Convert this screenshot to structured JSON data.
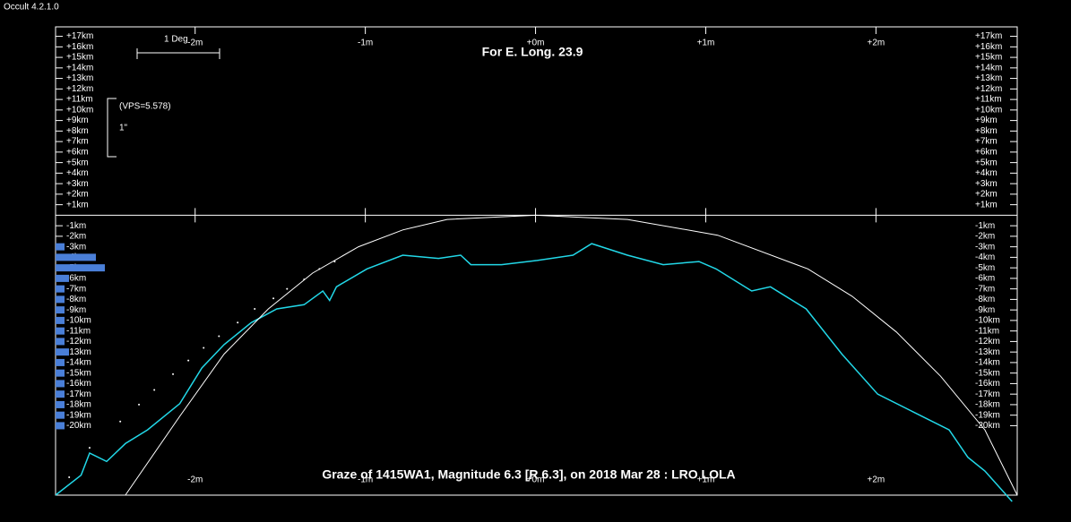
{
  "window": {
    "title": "Occult 4.2.1.0"
  },
  "chart_data": {
    "type": "line",
    "title": "For E. Long. 23.9",
    "caption": "Graze of  1415WA1,  Magnitude 6.3 [R 6.3],  on 2018 Mar 28  : LRO LOLA",
    "scale_label": "1 Deg",
    "vps_label": "(VPS=5.578)",
    "arcsec_label": "1\"",
    "xlim": [
      -2.82,
      2.83
    ],
    "ylim": [
      -26.6,
      17.9
    ],
    "xticks": [
      {
        "value": -2,
        "label": "-2m"
      },
      {
        "value": -1,
        "label": "-1m"
      },
      {
        "value": 0,
        "label": "+0m"
      },
      {
        "value": 1,
        "label": "+1m"
      },
      {
        "value": 2,
        "label": "+2m"
      }
    ],
    "yticks": [
      {
        "value": 17,
        "label": "+17km"
      },
      {
        "value": 16,
        "label": "+16km"
      },
      {
        "value": 15,
        "label": "+15km"
      },
      {
        "value": 14,
        "label": "+14km"
      },
      {
        "value": 13,
        "label": "+13km"
      },
      {
        "value": 12,
        "label": "+12km"
      },
      {
        "value": 11,
        "label": "+11km"
      },
      {
        "value": 10,
        "label": "+10km"
      },
      {
        "value": 9,
        "label": "+9km"
      },
      {
        "value": 8,
        "label": "+8km"
      },
      {
        "value": 7,
        "label": "+7km"
      },
      {
        "value": 6,
        "label": "+6km"
      },
      {
        "value": 5,
        "label": "+5km"
      },
      {
        "value": 4,
        "label": "+4km"
      },
      {
        "value": 3,
        "label": "+3km"
      },
      {
        "value": 2,
        "label": "+2km"
      },
      {
        "value": 1,
        "label": "+1km"
      },
      {
        "value": -1,
        "label": "-1km"
      },
      {
        "value": -2,
        "label": "-2km"
      },
      {
        "value": -3,
        "label": "-3km"
      },
      {
        "value": -4,
        "label": "-4km"
      },
      {
        "value": -5,
        "label": "-5km"
      },
      {
        "value": -6,
        "label": "-6km"
      },
      {
        "value": -7,
        "label": "-7km"
      },
      {
        "value": -8,
        "label": "-8km"
      },
      {
        "value": -9,
        "label": "-9km"
      },
      {
        "value": -10,
        "label": "-10km"
      },
      {
        "value": -11,
        "label": "-11km"
      },
      {
        "value": -12,
        "label": "-12km"
      },
      {
        "value": -13,
        "label": "-13km"
      },
      {
        "value": -14,
        "label": "-14km"
      },
      {
        "value": -15,
        "label": "-15km"
      },
      {
        "value": -16,
        "label": "-16km"
      },
      {
        "value": -17,
        "label": "-17km"
      },
      {
        "value": -18,
        "label": "-18km"
      },
      {
        "value": -19,
        "label": "-19km"
      },
      {
        "value": -20,
        "label": "-20km"
      }
    ],
    "series": [
      {
        "color": "#22d8e8",
        "x": [
          -2.82,
          -2.67,
          -2.62,
          -2.52,
          -2.41,
          -2.28,
          -2.09,
          -1.96,
          -1.83,
          -1.67,
          -1.52,
          -1.36,
          -1.25,
          -1.21,
          -1.17,
          -0.99,
          -0.78,
          -0.57,
          -0.44,
          -0.38,
          -0.2,
          0.01,
          0.22,
          0.33,
          0.54,
          0.75,
          0.96,
          1.06,
          1.27,
          1.38,
          1.59,
          1.8,
          2.01,
          2.22,
          2.43,
          2.54,
          2.64,
          2.8
        ],
        "values": [
          -26.6,
          -24.7,
          -22.6,
          -23.4,
          -21.7,
          -20.4,
          -17.9,
          -14.5,
          -12.3,
          -10.2,
          -8.9,
          -8.5,
          -7.2,
          -8.1,
          -6.8,
          -5.1,
          -3.8,
          -4.1,
          -3.8,
          -4.7,
          -4.7,
          -4.3,
          -3.8,
          -2.7,
          -3.8,
          -4.7,
          -4.4,
          -5.1,
          -7.2,
          -6.8,
          -8.9,
          -13.2,
          -17,
          -18.7,
          -20.4,
          -23,
          -24.3,
          -27.2
        ]
      },
      {
        "color": "#ffffff",
        "x": [
          -2.41,
          -2.09,
          -1.83,
          -1.57,
          -1.31,
          -1.04,
          -0.78,
          -0.52,
          0,
          0.54,
          1.07,
          1.6,
          1.86,
          2.12,
          2.38,
          2.64,
          2.83
        ],
        "values": [
          -26.6,
          -19.1,
          -13.2,
          -8.9,
          -5.5,
          -3,
          -1.4,
          -0.4,
          0,
          -0.4,
          -1.9,
          -5.1,
          -7.7,
          -11.1,
          -15.3,
          -20.4,
          -26.6
        ]
      }
    ],
    "dots": {
      "color": "#ffffff",
      "x": [
        -2.74,
        -2.62,
        -2.44,
        -2.33,
        -2.24,
        -2.13,
        -2.04,
        -1.95,
        -1.86,
        -1.75,
        -1.65,
        -1.54,
        -1.46,
        -1.36,
        -1.27,
        -1.18
      ],
      "values": [
        -24.9,
        -22.1,
        -19.6,
        -18,
        -16.6,
        -15.1,
        -13.8,
        -12.6,
        -11.5,
        -10.2,
        -8.9,
        -7.9,
        -7,
        -6.1,
        -5.1,
        -4.4
      ]
    },
    "histogram": {
      "color": "#4a7fd8",
      "xlim": [
        0,
        20
      ],
      "km": [
        -3,
        -4,
        -5,
        -6,
        -7,
        -8,
        -9,
        -10,
        -11,
        -12,
        -13,
        -14,
        -15,
        -16,
        -17,
        -18,
        -19,
        -20
      ],
      "values": [
        2,
        9,
        11,
        3,
        2,
        2,
        2,
        2,
        2,
        2,
        3,
        2,
        2,
        2,
        2,
        2,
        2,
        2
      ]
    }
  }
}
